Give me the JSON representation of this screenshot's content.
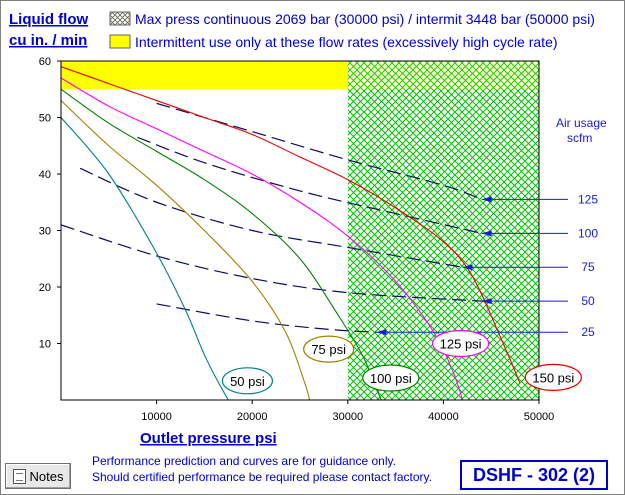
{
  "chart_data": {
    "type": "line",
    "title": "",
    "ylabel": "Liquid flow",
    "ylabel2": "cu in. / min",
    "xlabel": "Outlet pressure   psi",
    "xlim": [
      0,
      50000
    ],
    "ylim": [
      0,
      60
    ],
    "x_ticks": [
      10000,
      20000,
      30000,
      40000,
      50000
    ],
    "y_ticks": [
      10,
      20,
      30,
      40,
      50,
      60
    ],
    "legend": [
      {
        "pattern": "hatch-green",
        "label": "Max press continuous 2069 bar (30000 psi) / intermit 3448 bar (50000 psi)"
      },
      {
        "pattern": "solid-yellow",
        "label": "Intermittent use only at these flow rates (excessively high cycle rate)"
      }
    ],
    "regions": [
      {
        "name": "intermittent-pressure",
        "x": [
          30000,
          50000
        ],
        "y": [
          0,
          60
        ],
        "color": "#00c000",
        "style": "hatch"
      },
      {
        "name": "intermittent-flow",
        "x": [
          0,
          50000
        ],
        "y": [
          55,
          60
        ],
        "color": "#ffff00",
        "style": "solid"
      }
    ],
    "series": [
      {
        "name": "50 psi",
        "color": "#008080",
        "x": [
          0,
          5000,
          10000,
          13000,
          15000,
          16500,
          17500
        ],
        "y": [
          50,
          40,
          26,
          16,
          8,
          3,
          0
        ]
      },
      {
        "name": "75 psi",
        "color": "#a08000",
        "x": [
          0,
          5000,
          10000,
          15000,
          20000,
          23500,
          25500,
          26000
        ],
        "y": [
          53,
          45,
          38,
          30,
          21,
          12,
          3,
          0
        ]
      },
      {
        "name": "100 psi",
        "color": "#008000",
        "x": [
          0,
          5000,
          10000,
          15000,
          20000,
          25000,
          29000,
          31500,
          33000,
          33500
        ],
        "y": [
          55,
          49,
          44,
          39,
          33,
          25,
          15,
          8,
          2,
          0
        ]
      },
      {
        "name": "125 psi",
        "color": "#ff00ff",
        "x": [
          0,
          5000,
          10000,
          15000,
          20000,
          25000,
          30000,
          35000,
          39000,
          41000,
          42000
        ],
        "y": [
          57,
          52,
          48,
          44,
          40,
          35,
          29,
          21,
          12,
          5,
          0
        ]
      },
      {
        "name": "150 psi",
        "color": "#e80000",
        "x": [
          0,
          5000,
          10000,
          15000,
          20000,
          25000,
          30000,
          35000,
          40000,
          43000,
          46000,
          48000
        ],
        "y": [
          59,
          56,
          53,
          50,
          47,
          43,
          39,
          34,
          28,
          22,
          11,
          3
        ]
      }
    ],
    "air_usage": {
      "label_line1": "Air usage",
      "label_line2": "scfm",
      "lines": [
        {
          "name": "125",
          "x": [
            10000,
            20000,
            30000,
            40000,
            44000
          ],
          "y": [
            52.5,
            47.5,
            42.5,
            38,
            35.5
          ]
        },
        {
          "name": "100",
          "x": [
            8000,
            15000,
            25000,
            35000,
            44000
          ],
          "y": [
            46.5,
            42,
            37,
            33,
            29.5
          ]
        },
        {
          "name": "75",
          "x": [
            2000,
            10000,
            20000,
            30000,
            42000
          ],
          "y": [
            41,
            35,
            30,
            27,
            23.5
          ]
        },
        {
          "name": "50",
          "x": [
            0,
            10000,
            20000,
            30000,
            44000
          ],
          "y": [
            31,
            25.5,
            21.5,
            19,
            17.5
          ]
        },
        {
          "name": "25",
          "x": [
            10000,
            20000,
            28000,
            33000
          ],
          "y": [
            17,
            14,
            12.5,
            12
          ]
        }
      ]
    },
    "bubble_labels": [
      {
        "text": "50 psi",
        "x": 19500,
        "y": 3.4,
        "color": "#008080"
      },
      {
        "text": "75 psi",
        "x": 28000,
        "y": 9,
        "color": "#a08000"
      },
      {
        "text": "100 psi",
        "x": 34500,
        "y": 3.9,
        "color": "#008000"
      },
      {
        "text": "125 psi",
        "x": 41800,
        "y": 10,
        "color": "#ff00ff"
      },
      {
        "text": "150 psi",
        "x": 51500,
        "y": 4,
        "color": "#e80000"
      }
    ]
  },
  "footer": {
    "note_line1": "Performance prediction and curves are for guidance only.",
    "note_line2": "Should certified performance be required please contact factory.",
    "model": "DSHF - 302 (2)",
    "notes_button": "Notes"
  }
}
